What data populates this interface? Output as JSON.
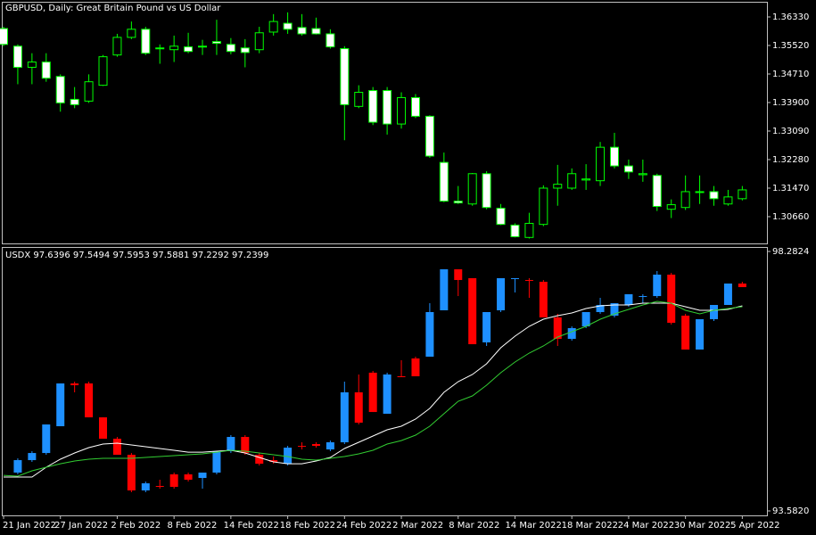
{
  "chart_data": [
    {
      "type": "candlestick",
      "title": "GBPUSD, Daily:  Great Britain Pound vs US Dollar",
      "up_color": "#000000",
      "down_color": "#ffffff",
      "outline_color": "#00ff00",
      "ylim": [
        1.299,
        1.3676
      ],
      "yticks": [
        {
          "value": 1.3633,
          "label": "1.36330"
        },
        {
          "value": 1.3552,
          "label": "1.35520"
        },
        {
          "value": 1.3471,
          "label": "1.34710"
        },
        {
          "value": 1.339,
          "label": "1.33900"
        },
        {
          "value": 1.3309,
          "label": "1.33090"
        },
        {
          "value": 1.3228,
          "label": "1.32280"
        },
        {
          "value": 1.3147,
          "label": "1.31470"
        },
        {
          "value": 1.3066,
          "label": "1.30660"
        }
      ],
      "open": [
        1.36,
        1.355,
        1.349,
        1.3505,
        1.3464,
        1.3399,
        1.3394,
        1.3439,
        1.3525,
        1.3575,
        1.3598,
        1.3543,
        1.354,
        1.3548,
        1.355,
        1.3563,
        1.3555,
        1.3545,
        1.354,
        1.359,
        1.3615,
        1.3603,
        1.36,
        1.3585,
        1.3543,
        1.3379,
        1.3424,
        1.3424,
        1.3329,
        1.3404,
        1.3351,
        1.322,
        1.311,
        1.3102,
        1.3188,
        1.309,
        1.3042,
        1.3007,
        1.3044,
        1.3147,
        1.3147,
        1.317,
        1.3168,
        1.3263,
        1.321,
        1.3185,
        1.3183,
        1.3087,
        1.3092,
        1.3135,
        1.3137,
        1.3102,
        1.3117
      ],
      "high": [
        1.3605,
        1.3555,
        1.353,
        1.353,
        1.347,
        1.3434,
        1.347,
        1.3525,
        1.3585,
        1.362,
        1.3605,
        1.3555,
        1.358,
        1.3588,
        1.3568,
        1.3625,
        1.3573,
        1.357,
        1.3605,
        1.3641,
        1.3646,
        1.3641,
        1.3631,
        1.3598,
        1.355,
        1.3439,
        1.3434,
        1.3434,
        1.3419,
        1.3414,
        1.3354,
        1.3248,
        1.3153,
        1.319,
        1.3195,
        1.3102,
        1.3047,
        1.3077,
        1.3155,
        1.3213,
        1.3203,
        1.3215,
        1.3278,
        1.3304,
        1.3228,
        1.3228,
        1.3188,
        1.3115,
        1.3183,
        1.3183,
        1.3153,
        1.3142,
        1.3153
      ],
      "low": [
        1.355,
        1.3442,
        1.3442,
        1.3449,
        1.3364,
        1.3374,
        1.3389,
        1.3437,
        1.352,
        1.357,
        1.3525,
        1.35,
        1.3505,
        1.353,
        1.3525,
        1.3525,
        1.3527,
        1.349,
        1.353,
        1.358,
        1.3585,
        1.358,
        1.3583,
        1.3543,
        1.3283,
        1.3374,
        1.3326,
        1.3299,
        1.3316,
        1.3346,
        1.3233,
        1.3107,
        1.3102,
        1.3097,
        1.3087,
        1.3042,
        1.3007,
        1.3004,
        1.3039,
        1.3097,
        1.3142,
        1.3142,
        1.3153,
        1.3203,
        1.3173,
        1.3165,
        1.3082,
        1.3062,
        1.3085,
        1.3102,
        1.3097,
        1.3097,
        1.3112
      ],
      "close": [
        1.3555,
        1.349,
        1.3505,
        1.3459,
        1.3389,
        1.3384,
        1.3449,
        1.352,
        1.3575,
        1.3598,
        1.353,
        1.3545,
        1.355,
        1.3535,
        1.3548,
        1.3558,
        1.3535,
        1.3532,
        1.3588,
        1.362,
        1.3598,
        1.3585,
        1.3585,
        1.3548,
        1.3384,
        1.3419,
        1.3334,
        1.3329,
        1.3404,
        1.3351,
        1.3238,
        1.311,
        1.3105,
        1.3188,
        1.3092,
        1.3044,
        1.3009,
        1.3047,
        1.3147,
        1.3158,
        1.3188,
        1.3173,
        1.3263,
        1.321,
        1.3193,
        1.3188,
        1.3095,
        1.31,
        1.3137,
        1.3137,
        1.3117,
        1.3122,
        1.3142
      ]
    },
    {
      "type": "candlestick",
      "title": "USDX 97.6396 97.5494 97.5953 97.5881 97.2292 97.2399",
      "up_color": "#1e90ff",
      "down_color": "#ff0000",
      "ylim": [
        93.501,
        98.363
      ],
      "yticks": [
        98.2824,
        {
          "value": 93.582,
          "label": "93.5820"
        }
      ],
      "categories": [
        "21 Jan 2022",
        null,
        null,
        null,
        "27 Jan 2022",
        null,
        null,
        null,
        "2 Feb 2022",
        null,
        null,
        null,
        "8 Feb 2022",
        null,
        null,
        null,
        "14 Feb 2022",
        null,
        null,
        null,
        "18 Feb 2022",
        null,
        null,
        null,
        "24 Feb 2022",
        null,
        null,
        null,
        "2 Mar 2022",
        null,
        null,
        null,
        "8 Mar 2022",
        null,
        null,
        null,
        "14 Mar 2022",
        null,
        null,
        null,
        "18 Mar 2022",
        null,
        null,
        null,
        "24 Mar 2022",
        null,
        null,
        null,
        "30 Mar 2022",
        null,
        null,
        null,
        "5 Apr 2022"
      ],
      "open": [
        null,
        94.276,
        94.502,
        94.631,
        95.116,
        95.891,
        95.891,
        95.277,
        94.89,
        94.599,
        93.953,
        94.034,
        94.244,
        94.244,
        94.179,
        94.276,
        94.664,
        94.922,
        94.599,
        94.502,
        94.437,
        94.76,
        94.793,
        94.696,
        94.825,
        95.73,
        96.086,
        95.342,
        96.021,
        96.344,
        96.376,
        97.216,
        97.959,
        97.798,
        96.635,
        97.216,
        97.782,
        97.765,
        97.733,
        97.087,
        96.699,
        96.925,
        97.184,
        97.119,
        97.313,
        97.458,
        97.474,
        97.862,
        97.119,
        96.505,
        97.055,
        97.313,
        97.701
      ],
      "high": [
        null,
        94.534,
        94.664,
        95.148,
        95.891,
        95.924,
        95.924,
        95.277,
        94.922,
        94.631,
        94.114,
        94.147,
        94.276,
        94.276,
        94.276,
        94.664,
        94.955,
        94.955,
        94.631,
        94.567,
        94.76,
        94.825,
        94.825,
        94.857,
        95.924,
        96.053,
        96.118,
        96.086,
        96.312,
        96.376,
        97.345,
        97.959,
        97.959,
        97.798,
        97.184,
        97.798,
        97.798,
        97.798,
        97.765,
        97.152,
        96.925,
        97.184,
        97.442,
        97.345,
        97.507,
        97.507,
        97.927,
        97.894,
        97.152,
        97.055,
        97.313,
        97.701,
        97.733
      ],
      "low": [
        null,
        94.244,
        94.47,
        94.599,
        95.116,
        95.73,
        95.277,
        94.89,
        94.599,
        93.921,
        93.921,
        93.985,
        93.985,
        94.114,
        93.985,
        94.244,
        94.631,
        94.599,
        94.405,
        94.437,
        94.405,
        94.696,
        94.728,
        94.664,
        94.793,
        95.148,
        95.374,
        95.342,
        96.021,
        96.021,
        96.376,
        97.216,
        97.474,
        96.602,
        96.57,
        97.184,
        97.539,
        97.442,
        97.087,
        96.57,
        96.667,
        96.893,
        97.152,
        97.087,
        97.281,
        97.345,
        97.442,
        96.958,
        96.505,
        96.505,
        97.023,
        97.313,
        97.636
      ],
      "close": [
        null,
        94.502,
        94.631,
        95.148,
        95.891,
        95.859,
        95.277,
        94.89,
        94.599,
        93.953,
        94.082,
        94.018,
        94.018,
        94.147,
        94.276,
        94.664,
        94.922,
        94.631,
        94.437,
        94.47,
        94.728,
        94.752,
        94.76,
        94.825,
        95.73,
        95.18,
        95.374,
        96.053,
        96.005,
        96.021,
        97.184,
        97.959,
        97.765,
        96.602,
        97.184,
        97.798,
        97.798,
        97.749,
        97.087,
        96.699,
        96.893,
        97.184,
        97.313,
        97.345,
        97.507,
        97.474,
        97.862,
        96.99,
        96.505,
        97.055,
        97.313,
        97.701,
        97.636
      ],
      "overlays": [
        {
          "color": "#ffffff",
          "values": [
            94.195,
            94.195,
            94.195,
            94.373,
            94.518,
            94.631,
            94.728,
            94.793,
            94.809,
            94.777,
            94.744,
            94.712,
            94.68,
            94.647,
            94.647,
            94.664,
            94.68,
            94.631,
            94.551,
            94.47,
            94.437,
            94.437,
            94.486,
            94.551,
            94.712,
            94.825,
            94.938,
            95.051,
            95.116,
            95.245,
            95.439,
            95.73,
            95.924,
            96.053,
            96.247,
            96.538,
            96.748,
            96.925,
            97.055,
            97.119,
            97.168,
            97.248,
            97.297,
            97.313,
            97.313,
            97.345,
            97.345,
            97.345,
            97.281,
            97.216,
            97.216,
            97.232,
            97.297
          ]
        },
        {
          "color": "#32cd32",
          "values": [
            94.227,
            94.211,
            94.308,
            94.373,
            94.437,
            94.486,
            94.518,
            94.534,
            94.534,
            94.534,
            94.551,
            94.567,
            94.583,
            94.599,
            94.615,
            94.647,
            94.68,
            94.664,
            94.631,
            94.599,
            94.567,
            94.518,
            94.502,
            94.534,
            94.567,
            94.615,
            94.68,
            94.793,
            94.857,
            94.955,
            95.116,
            95.342,
            95.568,
            95.665,
            95.859,
            96.086,
            96.279,
            96.441,
            96.57,
            96.731,
            96.828,
            96.925,
            97.055,
            97.152,
            97.232,
            97.313,
            97.378,
            97.345,
            97.216,
            97.152,
            97.216,
            97.248,
            97.281
          ]
        }
      ]
    }
  ]
}
